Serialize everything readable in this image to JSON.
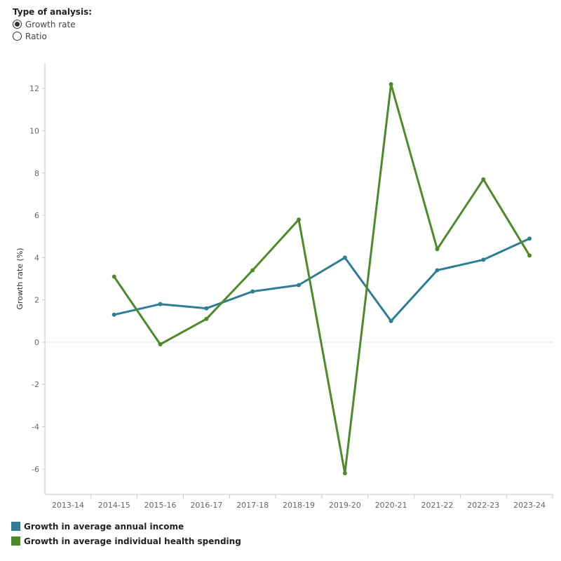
{
  "controls": {
    "title": "Type of analysis:",
    "options": [
      {
        "label": "Growth rate",
        "checked": true
      },
      {
        "label": "Ratio",
        "checked": false
      }
    ]
  },
  "colors": {
    "income": "#2e7d96",
    "health": "#4e8a2a",
    "axis": "#c8c8c8",
    "zero_line": "#bbbbbb"
  },
  "chart_data": {
    "type": "line",
    "title": "",
    "xlabel": "",
    "ylabel": "Growth rate (%)",
    "ylim": [
      -7.2,
      13.2
    ],
    "yticks": [
      -6,
      -4,
      -2,
      0,
      2,
      4,
      6,
      8,
      10,
      12
    ],
    "categories": [
      "2013-14",
      "2014-15",
      "2015-16",
      "2016-17",
      "2017-18",
      "2018-19",
      "2019-20",
      "2020-21",
      "2021-22",
      "2022-23",
      "2023-24"
    ],
    "series": [
      {
        "name": "Growth in average annual income",
        "color": "#2e7d96",
        "values": [
          null,
          1.3,
          1.8,
          1.6,
          2.4,
          2.7,
          4.0,
          1.0,
          3.4,
          3.9,
          4.9
        ]
      },
      {
        "name": "Growth in average individual health spending",
        "color": "#4e8a2a",
        "values": [
          null,
          3.1,
          -0.1,
          1.1,
          3.4,
          5.8,
          -6.2,
          12.2,
          4.4,
          7.7,
          4.1
        ]
      }
    ],
    "grid": false,
    "legend": "bottom-left"
  }
}
